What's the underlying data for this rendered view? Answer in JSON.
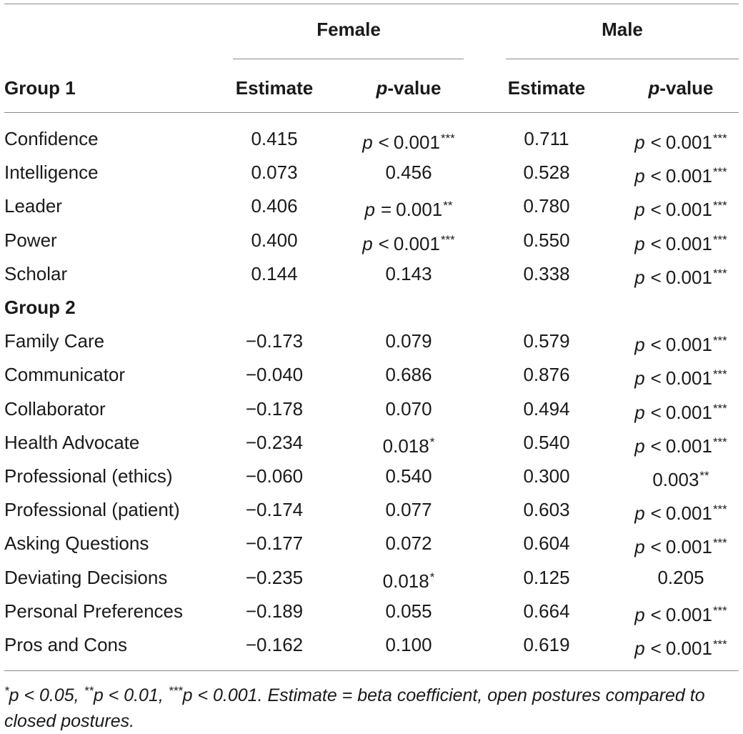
{
  "header": {
    "female": "Female",
    "male": "Male",
    "group1": "Group 1",
    "estimate": "Estimate",
    "p_italic": "p",
    "p_rest": "-value"
  },
  "groups": [
    {
      "title": "Group 1",
      "rows": [
        {
          "label": "Confidence",
          "f_est": "0.415",
          "f_p": {
            "kind": "p",
            "op": "<",
            "val": "0.001",
            "stars": "***"
          },
          "m_est": "0.711",
          "m_p": {
            "kind": "p",
            "op": "<",
            "val": "0.001",
            "stars": "***"
          }
        },
        {
          "label": "Intelligence",
          "f_est": "0.073",
          "f_p": {
            "kind": "num",
            "val": "0.456",
            "stars": ""
          },
          "m_est": "0.528",
          "m_p": {
            "kind": "p",
            "op": "<",
            "val": "0.001",
            "stars": "***"
          }
        },
        {
          "label": "Leader",
          "f_est": "0.406",
          "f_p": {
            "kind": "p",
            "op": "=",
            "val": "0.001",
            "stars": "**"
          },
          "m_est": "0.780",
          "m_p": {
            "kind": "p",
            "op": "<",
            "val": "0.001",
            "stars": "***"
          }
        },
        {
          "label": "Power",
          "f_est": "0.400",
          "f_p": {
            "kind": "p",
            "op": "<",
            "val": "0.001",
            "stars": "***"
          },
          "m_est": "0.550",
          "m_p": {
            "kind": "p",
            "op": "<",
            "val": "0.001",
            "stars": "***"
          }
        },
        {
          "label": "Scholar",
          "f_est": "0.144",
          "f_p": {
            "kind": "num",
            "val": "0.143",
            "stars": ""
          },
          "m_est": "0.338",
          "m_p": {
            "kind": "p",
            "op": "<",
            "val": "0.001",
            "stars": "***"
          }
        }
      ]
    },
    {
      "title": "Group 2",
      "rows": [
        {
          "label": "Family Care",
          "f_est": "−0.173",
          "f_p": {
            "kind": "num",
            "val": "0.079",
            "stars": ""
          },
          "m_est": "0.579",
          "m_p": {
            "kind": "p",
            "op": "<",
            "val": "0.001",
            "stars": "***"
          }
        },
        {
          "label": "Communicator",
          "f_est": "−0.040",
          "f_p": {
            "kind": "num",
            "val": "0.686",
            "stars": ""
          },
          "m_est": "0.876",
          "m_p": {
            "kind": "p",
            "op": "<",
            "val": "0.001",
            "stars": "***"
          }
        },
        {
          "label": "Collaborator",
          "f_est": "−0.178",
          "f_p": {
            "kind": "num",
            "val": "0.070",
            "stars": ""
          },
          "m_est": "0.494",
          "m_p": {
            "kind": "p",
            "op": "<",
            "val": "0.001",
            "stars": "***"
          }
        },
        {
          "label": "Health Advocate",
          "f_est": "−0.234",
          "f_p": {
            "kind": "num",
            "val": "0.018",
            "stars": "*"
          },
          "m_est": "0.540",
          "m_p": {
            "kind": "p",
            "op": "<",
            "val": "0.001",
            "stars": "***"
          }
        },
        {
          "label": "Professional (ethics)",
          "f_est": "−0.060",
          "f_p": {
            "kind": "num",
            "val": "0.540",
            "stars": ""
          },
          "m_est": "0.300",
          "m_p": {
            "kind": "num",
            "val": "0.003",
            "stars": "**"
          }
        },
        {
          "label": "Professional (patient)",
          "f_est": "−0.174",
          "f_p": {
            "kind": "num",
            "val": "0.077",
            "stars": ""
          },
          "m_est": "0.603",
          "m_p": {
            "kind": "p",
            "op": "<",
            "val": "0.001",
            "stars": "***"
          }
        },
        {
          "label": "Asking Questions",
          "f_est": "−0.177",
          "f_p": {
            "kind": "num",
            "val": "0.072",
            "stars": ""
          },
          "m_est": "0.604",
          "m_p": {
            "kind": "p",
            "op": "<",
            "val": "0.001",
            "stars": "***"
          }
        },
        {
          "label": "Deviating Decisions",
          "f_est": "−0.235",
          "f_p": {
            "kind": "num",
            "val": "0.018",
            "stars": "*"
          },
          "m_est": "0.125",
          "m_p": {
            "kind": "num",
            "val": "0.205",
            "stars": ""
          }
        },
        {
          "label": "Personal Preferences",
          "f_est": "−0.189",
          "f_p": {
            "kind": "num",
            "val": "0.055",
            "stars": ""
          },
          "m_est": "0.664",
          "m_p": {
            "kind": "p",
            "op": "<",
            "val": "0.001",
            "stars": "***"
          }
        },
        {
          "label": "Pros and Cons",
          "f_est": "−0.162",
          "f_p": {
            "kind": "num",
            "val": "0.100",
            "stars": ""
          },
          "m_est": "0.619",
          "m_p": {
            "kind": "p",
            "op": "<",
            "val": "0.001",
            "stars": "***"
          }
        }
      ]
    }
  ],
  "footnote": {
    "s1": "*",
    "p1": "p < 0.05, ",
    "s2": "**",
    "p2": "p < 0.01, ",
    "s3": "***",
    "p3": "p < 0.001. Estimate = beta coefficient, open postures compared to closed postures."
  }
}
